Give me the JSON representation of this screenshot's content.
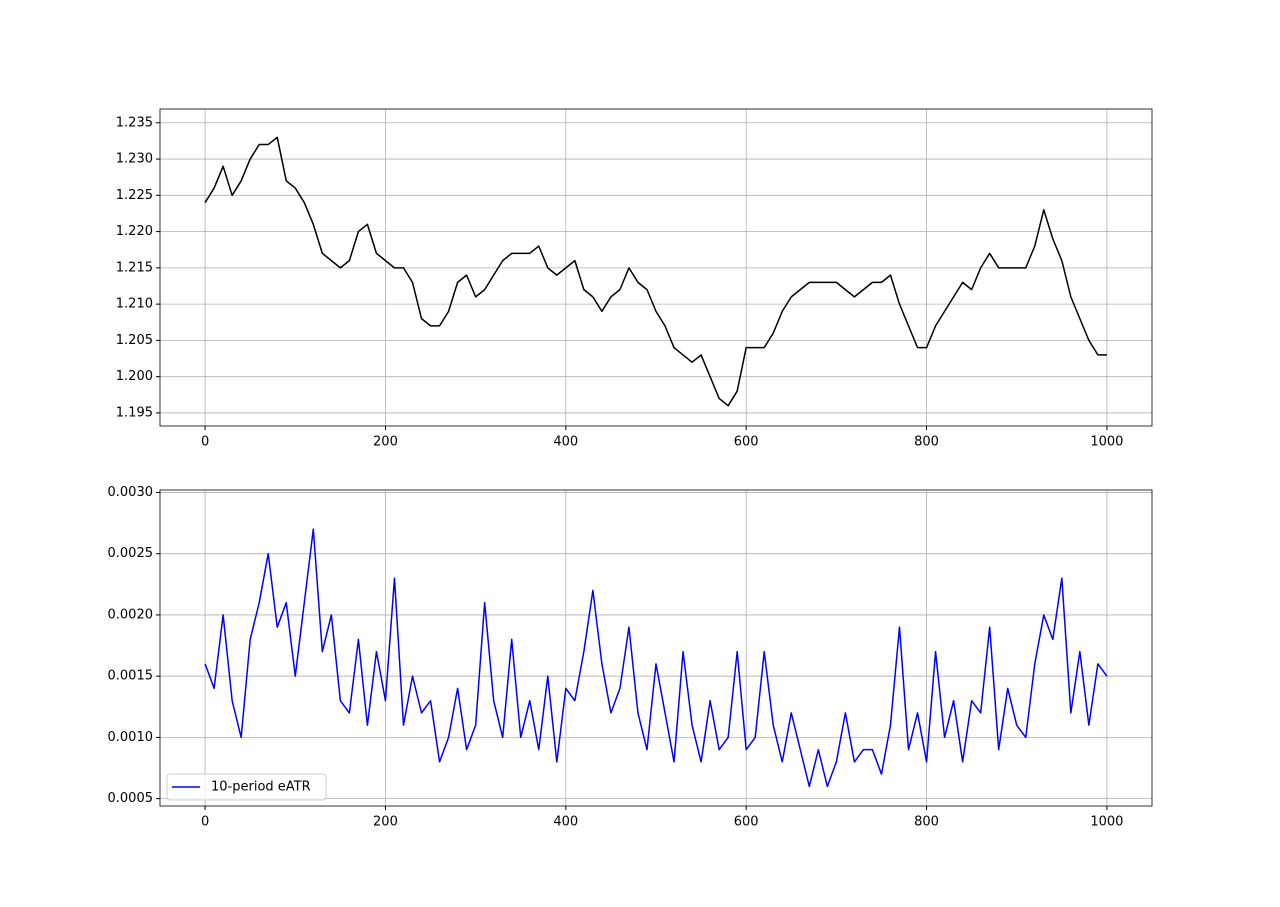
{
  "chart_data": [
    {
      "type": "line",
      "x": [
        0,
        10,
        20,
        30,
        40,
        50,
        60,
        70,
        80,
        90,
        100,
        110,
        120,
        130,
        140,
        150,
        160,
        170,
        180,
        190,
        200,
        210,
        220,
        230,
        240,
        250,
        260,
        270,
        280,
        290,
        300,
        310,
        320,
        330,
        340,
        350,
        360,
        370,
        380,
        390,
        400,
        410,
        420,
        430,
        440,
        450,
        460,
        470,
        480,
        490,
        500,
        510,
        520,
        530,
        540,
        550,
        560,
        570,
        580,
        590,
        600,
        610,
        620,
        630,
        640,
        650,
        660,
        670,
        680,
        690,
        700,
        710,
        720,
        730,
        740,
        750,
        760,
        770,
        780,
        790,
        800,
        810,
        820,
        830,
        840,
        850,
        860,
        870,
        880,
        890,
        900,
        910,
        920,
        930,
        940,
        950,
        960,
        970,
        980,
        990,
        1000
      ],
      "series": [
        {
          "color": "#000000",
          "values": [
            1.224,
            1.226,
            1.229,
            1.225,
            1.227,
            1.23,
            1.232,
            1.232,
            1.233,
            1.227,
            1.226,
            1.224,
            1.221,
            1.217,
            1.216,
            1.215,
            1.216,
            1.22,
            1.221,
            1.217,
            1.216,
            1.215,
            1.215,
            1.213,
            1.208,
            1.207,
            1.207,
            1.209,
            1.213,
            1.214,
            1.211,
            1.212,
            1.214,
            1.216,
            1.217,
            1.217,
            1.217,
            1.218,
            1.215,
            1.214,
            1.215,
            1.216,
            1.212,
            1.211,
            1.209,
            1.211,
            1.212,
            1.215,
            1.213,
            1.212,
            1.209,
            1.207,
            1.204,
            1.203,
            1.202,
            1.203,
            1.2,
            1.197,
            1.196,
            1.198,
            1.204,
            1.204,
            1.204,
            1.206,
            1.209,
            1.211,
            1.212,
            1.213,
            1.213,
            1.213,
            1.213,
            1.212,
            1.211,
            1.212,
            1.213,
            1.213,
            1.214,
            1.21,
            1.207,
            1.204,
            1.204,
            1.207,
            1.209,
            1.211,
            1.213,
            1.212,
            1.215,
            1.217,
            1.215,
            1.215,
            1.215,
            1.215,
            1.218,
            1.223,
            1.219,
            1.216,
            1.211,
            1.208,
            1.205,
            1.203,
            1.203
          ]
        }
      ],
      "xlim": [
        -50,
        1050
      ],
      "ylim": [
        1.1932,
        1.2369
      ],
      "xticks": [
        0,
        200,
        400,
        600,
        800,
        1000
      ],
      "yticks": [
        1.195,
        {
          "value": 1.2,
          "label": "1.200"
        },
        1.205,
        {
          "value": 1.21,
          "label": "1.210"
        },
        1.215,
        {
          "value": 1.22,
          "label": "1.220"
        },
        1.225,
        {
          "value": 1.23,
          "label": "1.230"
        },
        1.235
      ],
      "grid": true
    },
    {
      "type": "line",
      "x": [
        0,
        10,
        20,
        30,
        40,
        50,
        60,
        70,
        80,
        90,
        100,
        110,
        120,
        130,
        140,
        150,
        160,
        170,
        180,
        190,
        200,
        210,
        220,
        230,
        240,
        250,
        260,
        270,
        280,
        290,
        300,
        310,
        320,
        330,
        340,
        350,
        360,
        370,
        380,
        390,
        400,
        410,
        420,
        430,
        440,
        450,
        460,
        470,
        480,
        490,
        500,
        510,
        520,
        530,
        540,
        550,
        560,
        570,
        580,
        590,
        600,
        610,
        620,
        630,
        640,
        650,
        660,
        670,
        680,
        690,
        700,
        710,
        720,
        730,
        740,
        750,
        760,
        770,
        780,
        790,
        800,
        810,
        820,
        830,
        840,
        850,
        860,
        870,
        880,
        890,
        900,
        910,
        920,
        930,
        940,
        950,
        960,
        970,
        980,
        990,
        1000
      ],
      "series": [
        {
          "name": "10-period eATR",
          "color": "#0000ff",
          "values": [
            0.0016,
            0.0014,
            0.002,
            0.0013,
            0.001,
            0.0018,
            0.0021,
            0.0025,
            0.0019,
            0.0021,
            0.0015,
            0.0021,
            0.0027,
            0.0017,
            0.002,
            0.0013,
            0.0012,
            0.0018,
            0.0011,
            0.0017,
            0.0013,
            0.0023,
            0.0011,
            0.0015,
            0.0012,
            0.0013,
            0.0008,
            0.001,
            0.0014,
            0.0009,
            0.0011,
            0.0021,
            0.0013,
            0.001,
            0.0018,
            0.001,
            0.0013,
            0.0009,
            0.0015,
            0.0008,
            0.0014,
            0.0013,
            0.0017,
            0.0022,
            0.0016,
            0.0012,
            0.0014,
            0.0019,
            0.0012,
            0.0009,
            0.0016,
            0.0012,
            0.0008,
            0.0017,
            0.0011,
            0.0008,
            0.0013,
            0.0009,
            0.001,
            0.0017,
            0.0009,
            0.001,
            0.0017,
            0.0011,
            0.0008,
            0.0012,
            0.0009,
            0.0006,
            0.0009,
            0.0006,
            0.0008,
            0.0012,
            0.0008,
            0.0009,
            0.0009,
            0.0007,
            0.0011,
            0.0019,
            0.0009,
            0.0012,
            0.0008,
            0.0017,
            0.001,
            0.0013,
            0.0008,
            0.0013,
            0.0012,
            0.0019,
            0.0009,
            0.0014,
            0.0011,
            0.001,
            0.0016,
            0.002,
            0.0018,
            0.0023,
            0.0012,
            0.0017,
            0.0011,
            0.0016,
            0.0015
          ]
        }
      ],
      "xlim": [
        -50,
        1050
      ],
      "ylim": [
        0.00044,
        0.00302
      ],
      "xticks": [
        0,
        200,
        400,
        600,
        800,
        1000
      ],
      "yticks": [
        0.0005,
        {
          "value": 0.001,
          "label": "0.0010"
        },
        0.0015,
        {
          "value": 0.002,
          "label": "0.0020"
        },
        0.0025,
        {
          "value": 0.003,
          "label": "0.0030"
        }
      ],
      "grid": true,
      "legend": "lower left"
    }
  ]
}
